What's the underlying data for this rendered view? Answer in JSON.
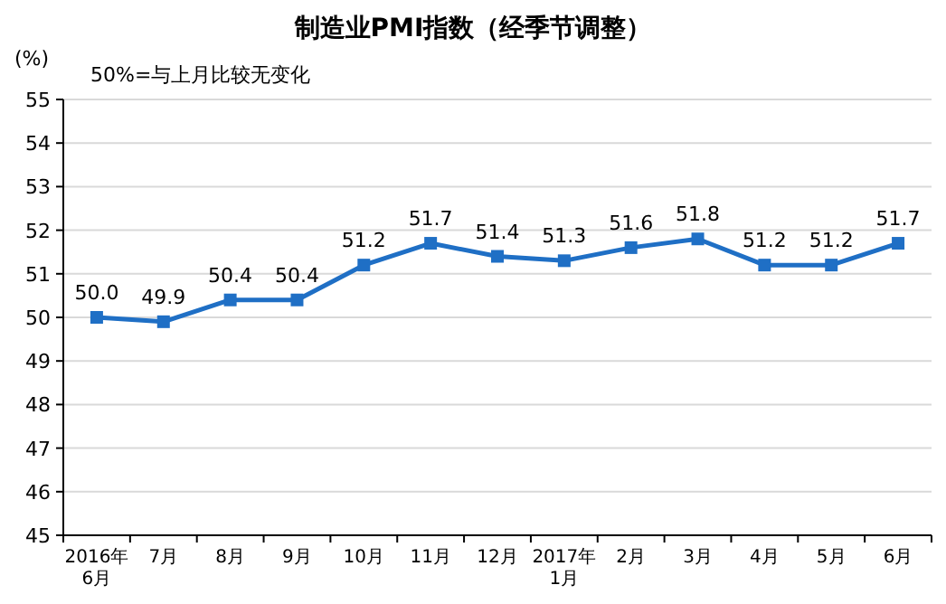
{
  "chart_data": {
    "type": "line",
    "title": "制造业PMI指数（经季节调整）",
    "ylabel": "(%)",
    "annotations": [
      "50%=与上月比较无变化"
    ],
    "categories": [
      "2016年\n6月",
      "7月",
      "8月",
      "9月",
      "10月",
      "11月",
      "12月",
      "2017年\n1月",
      "2月",
      "3月",
      "4月",
      "5月",
      "6月"
    ],
    "series": [
      {
        "color": "#1f6fc5",
        "values": [
          50.0,
          49.9,
          50.4,
          50.4,
          51.2,
          51.7,
          51.4,
          51.3,
          51.6,
          51.8,
          51.2,
          51.2,
          51.7
        ],
        "value_labels": [
          "50.0",
          "49.9",
          "50.4",
          "50.4",
          "51.2",
          "51.7",
          "51.4",
          "51.3",
          "51.6",
          "51.8",
          "51.2",
          "51.2",
          "51.7"
        ]
      }
    ],
    "ylim": [
      45,
      55
    ],
    "yticks": [
      45,
      46,
      47,
      48,
      49,
      50,
      51,
      52,
      53,
      54,
      55
    ],
    "grid": "y",
    "marker": "square",
    "line_style": "solid"
  }
}
